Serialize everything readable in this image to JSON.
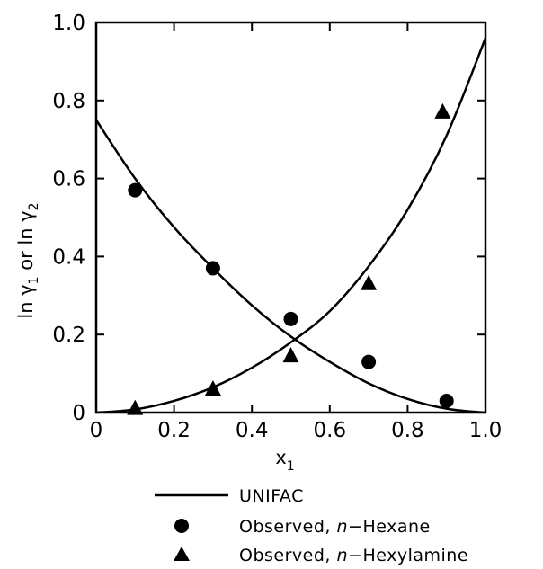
{
  "chart_data": {
    "type": "line",
    "xlabel": "x",
    "xlabel_subscript": "1",
    "ylabel_parts": [
      "ln γ",
      "1",
      " or ln γ",
      "2"
    ],
    "xlim": [
      0,
      1.0
    ],
    "ylim": [
      0,
      1.0
    ],
    "x_ticks": [
      0,
      0.2,
      0.4,
      0.6,
      0.8,
      1.0
    ],
    "x_tick_labels": [
      "0",
      "0.2",
      "0.4",
      "0.6",
      "0.8",
      "1.0"
    ],
    "y_ticks": [
      0,
      0.2,
      0.4,
      0.6,
      0.8,
      1.0
    ],
    "y_tick_labels": [
      "0",
      "0.2",
      "0.4",
      "0.6",
      "0.8",
      "1.0"
    ],
    "grid": false,
    "legend_position": "below",
    "series": [
      {
        "name": "UNIFAC",
        "kind": "curve",
        "x": [
          0,
          0.1,
          0.2,
          0.3,
          0.4,
          0.5,
          0.6,
          0.7,
          0.8,
          0.9,
          1.0
        ],
        "y": [
          0.75,
          0.6,
          0.475,
          0.37,
          0.275,
          0.195,
          0.13,
          0.075,
          0.035,
          0.01,
          0.0
        ]
      },
      {
        "name": "UNIFAC",
        "kind": "curve",
        "x": [
          0,
          0.1,
          0.2,
          0.3,
          0.4,
          0.5,
          0.6,
          0.7,
          0.8,
          0.9,
          1.0
        ],
        "y": [
          0.0,
          0.008,
          0.03,
          0.065,
          0.115,
          0.18,
          0.26,
          0.375,
          0.52,
          0.71,
          0.96
        ]
      },
      {
        "name": "Observed, n-Hexane",
        "kind": "circle",
        "x": [
          0.1,
          0.3,
          0.5,
          0.7,
          0.9
        ],
        "y": [
          0.57,
          0.37,
          0.24,
          0.13,
          0.03
        ]
      },
      {
        "name": "Observed, n-Hexylamine",
        "kind": "triangle",
        "x": [
          0.1,
          0.3,
          0.5,
          0.7,
          0.89
        ],
        "y": [
          0.01,
          0.06,
          0.145,
          0.33,
          0.77
        ]
      }
    ],
    "legend": [
      {
        "symbol": "line",
        "label": "UNIFAC"
      },
      {
        "symbol": "circle",
        "label_prefix": "Observed, ",
        "label_italic": "n",
        "label_suffix": "−Hexane"
      },
      {
        "symbol": "triangle",
        "label_prefix": "Observed, ",
        "label_italic": "n",
        "label_suffix": "−Hexylamine"
      }
    ],
    "colors": {
      "ink": "#000000",
      "background": "#ffffff"
    }
  }
}
